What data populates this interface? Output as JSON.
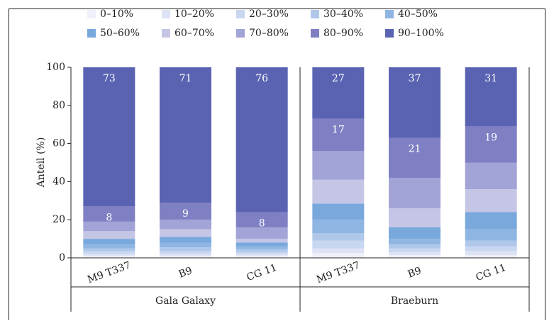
{
  "chart_data": {
    "type": "stacked-bar",
    "categories": [
      "M9 T337",
      "B9",
      "CG 11",
      "M9 T337",
      "B9",
      "CG 11"
    ],
    "groups": [
      "Gala Galaxy",
      "Braeburn"
    ],
    "y_label": "Anteil (%)",
    "ylim": [
      0,
      100
    ],
    "yticks": [
      0,
      20,
      40,
      60,
      80,
      100
    ],
    "series": [
      {
        "name": "0–10%",
        "color": "#eef0fa",
        "values": [
          1,
          1,
          1,
          2.5,
          1.5,
          1.5
        ]
      },
      {
        "name": "10–20%",
        "color": "#dde3f5",
        "values": [
          1,
          1,
          1,
          2.5,
          1.5,
          2
        ]
      },
      {
        "name": "20–30%",
        "color": "#c9d6f0",
        "values": [
          1.5,
          1.5,
          1,
          4,
          2,
          2.5
        ]
      },
      {
        "name": "30–40%",
        "color": "#afc8ea",
        "values": [
          1.5,
          2,
          1.5,
          4,
          2,
          3
        ]
      },
      {
        "name": "40–50%",
        "color": "#8fb5e2",
        "values": [
          2,
          2.5,
          1.5,
          7,
          3,
          6
        ]
      },
      {
        "name": "50–60%",
        "color": "#79a8dc",
        "values": [
          3,
          3,
          2,
          8.5,
          6,
          9
        ]
      },
      {
        "name": "60–70%",
        "color": "#c5c5e6",
        "values": [
          4,
          4,
          2,
          12.5,
          10,
          12
        ]
      },
      {
        "name": "70–80%",
        "color": "#a2a3d6",
        "values": [
          5,
          5,
          6,
          15,
          16,
          14
        ]
      },
      {
        "name": "80–90%",
        "color": "#7f80c4",
        "values": [
          8,
          9,
          8,
          17,
          21,
          19
        ],
        "labels": true
      },
      {
        "name": "90–100%",
        "color": "#5a63b2",
        "values": [
          73,
          71,
          76,
          27,
          37,
          31
        ],
        "labels": true
      }
    ]
  }
}
